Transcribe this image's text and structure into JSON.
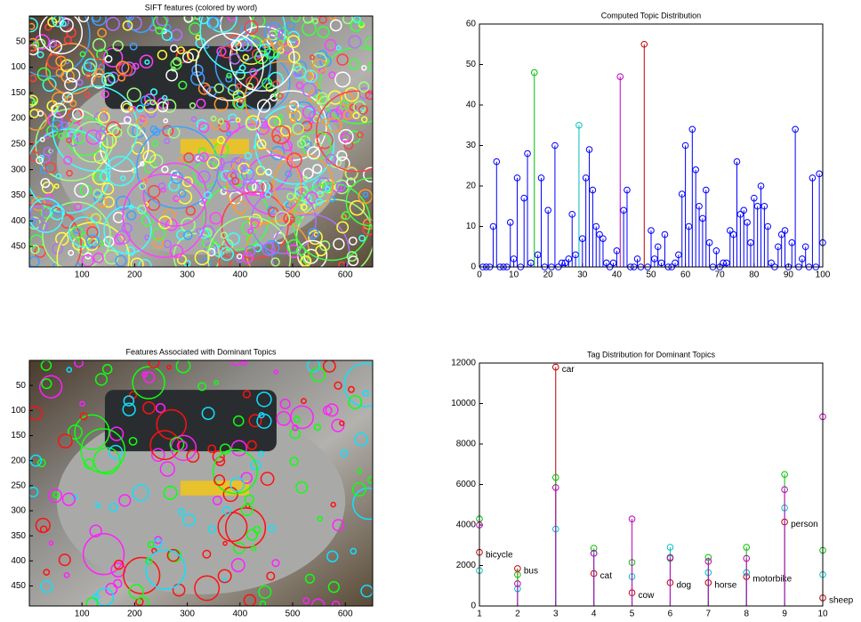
{
  "chart_data": [
    {
      "type": "image",
      "title": "SIFT features (colored by word)",
      "xlim": [
        0,
        652
      ],
      "ylim": [
        0,
        490
      ],
      "y_reversed": true,
      "xticks": [
        100,
        200,
        300,
        400,
        500,
        600
      ],
      "yticks": [
        50,
        100,
        150,
        200,
        250,
        300,
        350,
        400,
        450
      ]
    },
    {
      "type": "stem",
      "title": "Computed Topic Distribution",
      "xlim": [
        0,
        100
      ],
      "ylim": [
        0,
        60
      ],
      "xticks": [
        0,
        10,
        20,
        30,
        40,
        50,
        60,
        70,
        80,
        90,
        100
      ],
      "yticks": [
        0,
        10,
        20,
        30,
        40,
        50,
        60
      ],
      "highlight_colors": {
        "16": "#00bf00",
        "29": "#00bfbf",
        "41": "#bf00bf",
        "48": "#bf0000"
      },
      "series": [
        {
          "color": "#0000ff",
          "x": [
            1,
            2,
            3,
            4,
            5,
            6,
            7,
            8,
            9,
            10,
            11,
            12,
            13,
            14,
            15,
            16,
            17,
            18,
            19,
            20,
            21,
            22,
            23,
            24,
            25,
            26,
            27,
            28,
            29,
            30,
            31,
            32,
            33,
            34,
            35,
            36,
            37,
            38,
            39,
            40,
            41,
            42,
            43,
            44,
            45,
            46,
            47,
            48,
            49,
            50,
            51,
            52,
            53,
            54,
            55,
            56,
            57,
            58,
            59,
            60,
            61,
            62,
            63,
            64,
            65,
            66,
            67,
            68,
            69,
            70,
            71,
            72,
            73,
            74,
            75,
            76,
            77,
            78,
            79,
            80,
            81,
            82,
            83,
            84,
            85,
            86,
            87,
            88,
            89,
            90,
            91,
            92,
            93,
            94,
            95,
            96,
            97,
            98,
            99,
            100
          ],
          "values": [
            0,
            0,
            0,
            10,
            26,
            0,
            0,
            0,
            11,
            2,
            22,
            0,
            17,
            28,
            1,
            48,
            3,
            22,
            0,
            14,
            0,
            30,
            0,
            1,
            1,
            2,
            13,
            3,
            35,
            7,
            22,
            29,
            19,
            10,
            8,
            7,
            1,
            0,
            1,
            4,
            47,
            14,
            19,
            0,
            0,
            2,
            0,
            55,
            0,
            9,
            2,
            5,
            1,
            8,
            0,
            0,
            1,
            3,
            18,
            30,
            10,
            34,
            24,
            15,
            12,
            19,
            6,
            0,
            4,
            0,
            1,
            1,
            9,
            8,
            26,
            13,
            14,
            11,
            6,
            17,
            15,
            20,
            15,
            10,
            1,
            0,
            5,
            8,
            9,
            0,
            6,
            34,
            0,
            2,
            5,
            0,
            22,
            0,
            23,
            6
          ]
        }
      ]
    },
    {
      "type": "image",
      "title": "Features Associated with Dominant Topics",
      "xlim": [
        0,
        652
      ],
      "ylim": [
        0,
        490
      ],
      "y_reversed": true,
      "xticks": [
        100,
        200,
        300,
        400,
        500,
        600
      ],
      "yticks": [
        50,
        100,
        150,
        200,
        250,
        300,
        350,
        400,
        450
      ]
    },
    {
      "type": "stem",
      "title": "Tag Distribution for Dominant Topics",
      "xlim": [
        1,
        10
      ],
      "ylim": [
        0,
        12000
      ],
      "xticks": [
        1,
        2,
        3,
        4,
        5,
        6,
        7,
        8,
        9,
        10
      ],
      "yticks": [
        0,
        2000,
        4000,
        6000,
        8000,
        10000,
        12000
      ],
      "categories": [
        "bicycle",
        "bus",
        "car",
        "cat",
        "cow",
        "dog",
        "horse",
        "motorbike",
        "person",
        "sheep"
      ],
      "category_label_series": 0,
      "series": [
        {
          "color": "#bf0000",
          "x": [
            1,
            2,
            3,
            4,
            5,
            6,
            7,
            8,
            9,
            10
          ],
          "values": [
            2650,
            1850,
            11800,
            1600,
            650,
            1150,
            1150,
            1450,
            4150,
            400
          ]
        },
        {
          "color": "#00bf00",
          "x": [
            1,
            2,
            3,
            4,
            5,
            6,
            7,
            8,
            9,
            10
          ],
          "values": [
            4300,
            1550,
            6350,
            2850,
            2150,
            2350,
            2400,
            2900,
            6500,
            2750
          ]
        },
        {
          "color": "#00bfbf",
          "x": [
            1,
            2,
            3,
            4,
            5,
            6,
            7,
            8,
            9,
            10
          ],
          "values": [
            1750,
            850,
            3800,
            2600,
            1450,
            2900,
            1650,
            1650,
            4850,
            1550
          ]
        },
        {
          "color": "#bf00bf",
          "x": [
            1,
            2,
            3,
            4,
            5,
            6,
            7,
            8,
            9,
            10
          ],
          "values": [
            4000,
            1100,
            5850,
            2600,
            4300,
            2400,
            2200,
            2350,
            5750,
            9350
          ]
        }
      ]
    }
  ]
}
